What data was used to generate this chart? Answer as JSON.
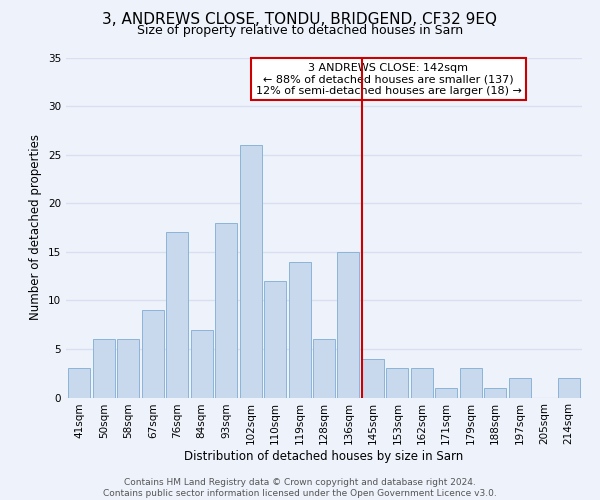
{
  "title": "3, ANDREWS CLOSE, TONDU, BRIDGEND, CF32 9EQ",
  "subtitle": "Size of property relative to detached houses in Sarn",
  "xlabel": "Distribution of detached houses by size in Sarn",
  "ylabel": "Number of detached properties",
  "bar_labels": [
    "41sqm",
    "50sqm",
    "58sqm",
    "67sqm",
    "76sqm",
    "84sqm",
    "93sqm",
    "102sqm",
    "110sqm",
    "119sqm",
    "128sqm",
    "136sqm",
    "145sqm",
    "153sqm",
    "162sqm",
    "171sqm",
    "179sqm",
    "188sqm",
    "197sqm",
    "205sqm",
    "214sqm"
  ],
  "bar_values": [
    3,
    6,
    6,
    9,
    17,
    7,
    18,
    26,
    12,
    14,
    6,
    15,
    4,
    3,
    3,
    1,
    3,
    1,
    2,
    0,
    2
  ],
  "bar_color": "#c8d9ee",
  "bar_edge_color": "#8ab4d8",
  "vline_x_index": 12,
  "vline_color": "#cc0000",
  "annotation_title": "3 ANDREWS CLOSE: 142sqm",
  "annotation_line1": "← 88% of detached houses are smaller (137)",
  "annotation_line2": "12% of semi-detached houses are larger (18) →",
  "annotation_box_facecolor": "#ffffff",
  "annotation_box_edgecolor": "#cc0000",
  "ylim": [
    0,
    35
  ],
  "yticks": [
    0,
    5,
    10,
    15,
    20,
    25,
    30,
    35
  ],
  "background_color": "#eef2fb",
  "grid_color": "#d8dff0",
  "title_fontsize": 11,
  "subtitle_fontsize": 9,
  "axis_label_fontsize": 8.5,
  "tick_fontsize": 7.5,
  "annotation_fontsize": 8,
  "footer_fontsize": 6.5,
  "footer_line1": "Contains HM Land Registry data © Crown copyright and database right 2024.",
  "footer_line2": "Contains public sector information licensed under the Open Government Licence v3.0."
}
